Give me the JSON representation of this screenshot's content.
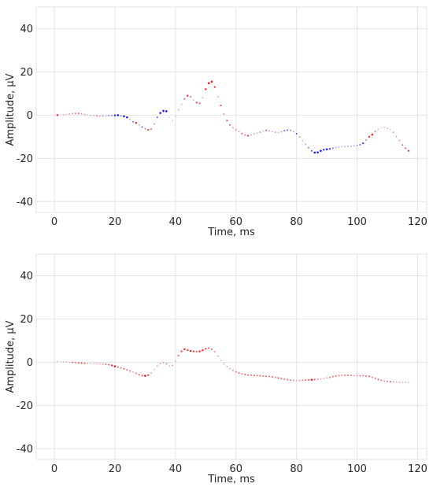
{
  "chart_data": [
    {
      "type": "scatter",
      "title": "",
      "xlabel": "Time, ms",
      "ylabel": "Amplitude, μV",
      "xlim": [
        -6,
        123
      ],
      "ylim": [
        -45,
        50
      ],
      "xticks": [
        0,
        20,
        40,
        60,
        80,
        100,
        120
      ],
      "yticks": [
        -40,
        -20,
        0,
        20,
        40
      ],
      "grid": true,
      "color_scale": {
        "negative": "#0000ff",
        "neutral": "#e6e6ea",
        "positive": "#ff0000"
      },
      "points": [
        [
          1,
          0,
          0.9,
          1.2
        ],
        [
          2,
          0.1,
          0.15,
          0.9
        ],
        [
          3,
          0.2,
          0.2,
          0.9
        ],
        [
          4,
          0.3,
          0.2,
          0.9
        ],
        [
          5,
          0.5,
          0.3,
          1.0
        ],
        [
          6,
          0.7,
          0.3,
          1.0
        ],
        [
          7,
          0.8,
          0.5,
          1.0
        ],
        [
          8,
          0.8,
          0.6,
          1.0
        ],
        [
          9,
          0.6,
          -0.3,
          0.9
        ],
        [
          10,
          0.3,
          -0.3,
          0.9
        ],
        [
          11,
          0.1,
          0.2,
          0.9
        ],
        [
          12,
          -0.1,
          0.3,
          0.9
        ],
        [
          13,
          -0.2,
          -0.3,
          0.9
        ],
        [
          14,
          -0.3,
          0.5,
          0.9
        ],
        [
          15,
          -0.4,
          0.4,
          0.9
        ],
        [
          16,
          -0.4,
          -0.4,
          0.9
        ],
        [
          17,
          -0.3,
          0.3,
          0.9
        ],
        [
          18,
          -0.2,
          -0.5,
          0.9
        ],
        [
          19,
          -0.2,
          -0.5,
          0.9
        ],
        [
          20,
          -0.1,
          -0.8,
          1.2
        ],
        [
          21,
          0,
          -0.9,
          1.3
        ],
        [
          22,
          -0.3,
          -0.5,
          0.9
        ],
        [
          23,
          -0.5,
          -0.9,
          1.3
        ],
        [
          24,
          -1,
          -0.9,
          1.3
        ],
        [
          25,
          -2,
          0.3,
          0.9
        ],
        [
          26,
          -3,
          -0.5,
          1.0
        ],
        [
          27,
          -3.6,
          0.9,
          1.2
        ],
        [
          28,
          -4.5,
          -0.3,
          0.9
        ],
        [
          29,
          -5.5,
          -0.6,
          1.0
        ],
        [
          30,
          -6.3,
          0.5,
          1.0
        ],
        [
          31,
          -6.8,
          0.8,
          1.1
        ],
        [
          32,
          -6.5,
          0.6,
          1.0
        ],
        [
          33,
          -4,
          -0.4,
          0.9
        ],
        [
          34,
          -1,
          -0.6,
          1.0
        ],
        [
          35,
          1,
          -0.9,
          1.3
        ],
        [
          36,
          2,
          -0.9,
          1.3
        ],
        [
          37,
          1.8,
          -0.9,
          1.3
        ],
        [
          38,
          -1,
          0.1,
          0.9
        ],
        [
          39,
          -2.5,
          0.2,
          0.9
        ],
        [
          40,
          -0.5,
          0.2,
          0.9
        ],
        [
          41,
          2.5,
          -0.3,
          0.9
        ],
        [
          42,
          5,
          0.3,
          0.9
        ],
        [
          43,
          7.5,
          0.6,
          1.0
        ],
        [
          44,
          9,
          0.9,
          1.2
        ],
        [
          45,
          8.5,
          0.5,
          1.0
        ],
        [
          46,
          7,
          0.3,
          0.9
        ],
        [
          47,
          5.8,
          0.8,
          1.1
        ],
        [
          48,
          5.5,
          0.7,
          1.0
        ],
        [
          49,
          8,
          0.4,
          0.9
        ],
        [
          50,
          12,
          0.9,
          1.2
        ],
        [
          51,
          14.8,
          0.9,
          1.3
        ],
        [
          52,
          15.5,
          0.9,
          1.3
        ],
        [
          53,
          13,
          0.8,
          1.1
        ],
        [
          54,
          8.5,
          0.4,
          0.9
        ],
        [
          55,
          4.5,
          0.8,
          1.0
        ],
        [
          56,
          0.5,
          0.5,
          0.9
        ],
        [
          57,
          -2.5,
          0.8,
          1.0
        ],
        [
          58,
          -4.5,
          0.6,
          1.0
        ],
        [
          59,
          -5.8,
          0.4,
          0.9
        ],
        [
          60,
          -6.8,
          0.5,
          0.9
        ],
        [
          61,
          -7.5,
          0.4,
          0.9
        ],
        [
          62,
          -8.5,
          0.6,
          1.0
        ],
        [
          63,
          -9.2,
          0.5,
          1.0
        ],
        [
          64,
          -9.5,
          0.8,
          1.1
        ],
        [
          65,
          -9.1,
          -0.3,
          0.9
        ],
        [
          66,
          -8.6,
          -0.3,
          0.9
        ],
        [
          67,
          -8.3,
          -0.2,
          0.9
        ],
        [
          68,
          -7.9,
          -0.4,
          0.9
        ],
        [
          69,
          -7.4,
          0.2,
          0.9
        ],
        [
          70,
          -7,
          -0.6,
          1.0
        ],
        [
          71,
          -7.3,
          0.4,
          0.9
        ],
        [
          72,
          -7.6,
          0.3,
          0.9
        ],
        [
          73,
          -7.9,
          -0.3,
          0.9
        ],
        [
          74,
          -8,
          0.3,
          0.9
        ],
        [
          75,
          -7.7,
          0.4,
          0.9
        ],
        [
          76,
          -7.2,
          -0.6,
          1.0
        ],
        [
          77,
          -6.9,
          -0.6,
          1.0
        ],
        [
          78,
          -7,
          -0.5,
          0.9
        ],
        [
          79,
          -7.5,
          0.4,
          0.9
        ],
        [
          80,
          -8.6,
          -0.7,
          1.0
        ],
        [
          81,
          -10,
          0.5,
          0.9
        ],
        [
          82,
          -11.8,
          0.3,
          0.9
        ],
        [
          83,
          -13.5,
          -0.3,
          0.9
        ],
        [
          84,
          -15,
          0.6,
          1.0
        ],
        [
          85,
          -16.5,
          -0.7,
          1.0
        ],
        [
          86,
          -17.3,
          -0.9,
          1.3
        ],
        [
          87,
          -17.2,
          -0.9,
          1.3
        ],
        [
          88,
          -16.5,
          -0.9,
          1.3
        ],
        [
          89,
          -16,
          -0.8,
          1.2
        ],
        [
          90,
          -15.8,
          -0.9,
          1.3
        ],
        [
          91,
          -15.6,
          -0.8,
          1.1
        ],
        [
          92,
          -15.3,
          -0.5,
          1.0
        ],
        [
          93,
          -15,
          -0.3,
          0.9
        ],
        [
          94,
          -14.8,
          -0.3,
          0.9
        ],
        [
          95,
          -14.6,
          -0.2,
          0.9
        ],
        [
          96,
          -14.5,
          0.3,
          0.9
        ],
        [
          97,
          -14.4,
          -0.2,
          0.9
        ],
        [
          98,
          -14.4,
          -0.3,
          0.9
        ],
        [
          99,
          -14.2,
          -0.3,
          0.9
        ],
        [
          100,
          -14,
          -0.4,
          0.9
        ],
        [
          101,
          -13.7,
          -0.6,
          1.0
        ],
        [
          102,
          -13,
          -0.8,
          1.1
        ],
        [
          103,
          -11.5,
          0.5,
          1.0
        ],
        [
          104,
          -10,
          0.8,
          1.2
        ],
        [
          105,
          -9,
          0.9,
          1.3
        ],
        [
          106,
          -7.5,
          0.5,
          1.0
        ],
        [
          107,
          -6.5,
          0.2,
          0.9
        ],
        [
          108,
          -5.8,
          0.1,
          0.9
        ],
        [
          109,
          -5.6,
          0.2,
          0.9
        ],
        [
          110,
          -6.1,
          0.3,
          0.9
        ],
        [
          111,
          -6.8,
          0.2,
          0.9
        ],
        [
          112,
          -7.9,
          0.4,
          0.9
        ],
        [
          113,
          -9.8,
          0.4,
          0.9
        ],
        [
          114,
          -11.8,
          0.5,
          0.9
        ],
        [
          115,
          -13.8,
          0.6,
          1.0
        ],
        [
          116,
          -15.3,
          0.7,
          1.0
        ],
        [
          117,
          -16.5,
          0.9,
          1.1
        ]
      ]
    },
    {
      "type": "scatter",
      "title": "",
      "xlabel": "Time, ms",
      "ylabel": "Amplitude, μV",
      "xlim": [
        -6,
        123
      ],
      "ylim": [
        -45,
        50
      ],
      "xticks": [
        0,
        20,
        40,
        60,
        80,
        100,
        120
      ],
      "yticks": [
        -40,
        -20,
        0,
        20,
        40
      ],
      "grid": true,
      "color_scale": {
        "negative": "#0000ff",
        "neutral": "#e6e6ea",
        "positive": "#ff0000"
      },
      "points": [
        [
          1,
          0.3,
          -0.2,
          0.9
        ],
        [
          2,
          0.3,
          0.1,
          0.9
        ],
        [
          3,
          0.2,
          0.2,
          0.9
        ],
        [
          4,
          0.1,
          0.2,
          0.9
        ],
        [
          5,
          0,
          0.3,
          0.9
        ],
        [
          6,
          -0.1,
          0.6,
          1.0
        ],
        [
          7,
          -0.2,
          0.6,
          1.0
        ],
        [
          8,
          -0.3,
          0.7,
          1.0
        ],
        [
          9,
          -0.4,
          0.8,
          1.0
        ],
        [
          10,
          -0.5,
          0.6,
          1.0
        ],
        [
          11,
          -0.5,
          0.3,
          0.9
        ],
        [
          12,
          -0.6,
          -0.2,
          0.9
        ],
        [
          13,
          -0.6,
          0.2,
          0.9
        ],
        [
          14,
          -0.7,
          0.3,
          0.9
        ],
        [
          15,
          -0.8,
          0.3,
          0.9
        ],
        [
          16,
          -0.9,
          0.4,
          0.9
        ],
        [
          17,
          -1,
          0.5,
          1.0
        ],
        [
          18,
          -1.2,
          0.7,
          1.0
        ],
        [
          19,
          -1.5,
          0.8,
          1.2
        ],
        [
          20,
          -1.9,
          0.9,
          1.3
        ],
        [
          21,
          -2.3,
          0.6,
          1.0
        ],
        [
          22,
          -2.7,
          0.5,
          1.0
        ],
        [
          23,
          -3.1,
          0.6,
          1.0
        ],
        [
          24,
          -3.6,
          0.6,
          1.0
        ],
        [
          25,
          -4.1,
          0.5,
          1.0
        ],
        [
          26,
          -4.6,
          0.4,
          0.9
        ],
        [
          27,
          -5.2,
          0.5,
          1.0
        ],
        [
          28,
          -5.8,
          0.6,
          1.0
        ],
        [
          29,
          -6.2,
          0.7,
          1.0
        ],
        [
          30,
          -6.3,
          0.9,
          1.3
        ],
        [
          31,
          -6,
          0.8,
          1.1
        ],
        [
          32,
          -5,
          0.4,
          0.9
        ],
        [
          33,
          -3.5,
          0.3,
          0.9
        ],
        [
          34,
          -1.8,
          0.4,
          0.9
        ],
        [
          35,
          -0.6,
          0.5,
          0.9
        ],
        [
          36,
          -0.2,
          0.3,
          0.9
        ],
        [
          37,
          -0.8,
          -0.4,
          0.9
        ],
        [
          38,
          -1.8,
          0.3,
          0.9
        ],
        [
          39,
          -1.5,
          0.4,
          0.9
        ],
        [
          40,
          0.5,
          0.3,
          0.9
        ],
        [
          41,
          3,
          0.6,
          1.0
        ],
        [
          42,
          5,
          0.8,
          1.1
        ],
        [
          43,
          6,
          0.9,
          1.2
        ],
        [
          44,
          5.6,
          0.8,
          1.1
        ],
        [
          45,
          5.2,
          0.9,
          1.2
        ],
        [
          46,
          5,
          0.8,
          1.1
        ],
        [
          47,
          4.9,
          0.7,
          1.0
        ],
        [
          48,
          5,
          0.9,
          1.2
        ],
        [
          49,
          5.5,
          0.9,
          1.2
        ],
        [
          50,
          6.2,
          0.8,
          1.1
        ],
        [
          51,
          6.5,
          0.7,
          1.0
        ],
        [
          52,
          6,
          0.6,
          1.0
        ],
        [
          53,
          4.8,
          0.5,
          0.9
        ],
        [
          54,
          2.8,
          0.4,
          0.9
        ],
        [
          55,
          0.8,
          0.2,
          0.9
        ],
        [
          56,
          -0.8,
          0.3,
          0.9
        ],
        [
          57,
          -2,
          -0.3,
          0.9
        ],
        [
          58,
          -3,
          0.4,
          0.9
        ],
        [
          59,
          -3.8,
          0.5,
          0.9
        ],
        [
          60,
          -4.5,
          0.5,
          1.0
        ],
        [
          61,
          -5,
          0.6,
          1.0
        ],
        [
          62,
          -5.4,
          0.5,
          1.0
        ],
        [
          63,
          -5.7,
          0.6,
          1.0
        ],
        [
          64,
          -5.9,
          0.6,
          1.0
        ],
        [
          65,
          -6,
          0.5,
          1.0
        ],
        [
          66,
          -6.1,
          0.6,
          1.0
        ],
        [
          67,
          -6.2,
          0.6,
          1.0
        ],
        [
          68,
          -6.3,
          0.6,
          1.0
        ],
        [
          69,
          -6.4,
          0.5,
          1.0
        ],
        [
          70,
          -6.5,
          0.6,
          1.0
        ],
        [
          71,
          -6.6,
          0.5,
          1.0
        ],
        [
          72,
          -6.8,
          0.6,
          1.0
        ],
        [
          73,
          -7,
          0.5,
          1.0
        ],
        [
          74,
          -7.3,
          0.7,
          1.1
        ],
        [
          75,
          -7.6,
          0.6,
          1.0
        ],
        [
          76,
          -7.9,
          0.5,
          1.0
        ],
        [
          77,
          -8.1,
          0.5,
          1.0
        ],
        [
          78,
          -8.3,
          0.5,
          1.0
        ],
        [
          79,
          -8.4,
          0.4,
          0.9
        ],
        [
          80,
          -8.5,
          0.3,
          0.9
        ],
        [
          81,
          -8.5,
          0.4,
          0.9
        ],
        [
          82,
          -8.4,
          0.5,
          1.0
        ],
        [
          83,
          -8.3,
          0.6,
          1.0
        ],
        [
          84,
          -8.2,
          0.7,
          1.0
        ],
        [
          85,
          -8.1,
          0.9,
          1.3
        ],
        [
          86,
          -8,
          0.6,
          1.0
        ],
        [
          87,
          -7.9,
          0.4,
          0.9
        ],
        [
          88,
          -7.8,
          0.3,
          0.9
        ],
        [
          89,
          -7.6,
          0.3,
          0.9
        ],
        [
          90,
          -7.3,
          0.4,
          0.9
        ],
        [
          91,
          -7,
          0.5,
          1.0
        ],
        [
          92,
          -6.7,
          0.6,
          1.0
        ],
        [
          93,
          -6.4,
          0.6,
          1.0
        ],
        [
          94,
          -6.2,
          0.5,
          1.0
        ],
        [
          95,
          -6.1,
          0.4,
          0.9
        ],
        [
          96,
          -6,
          0.5,
          1.0
        ],
        [
          97,
          -6,
          0.6,
          1.0
        ],
        [
          98,
          -6.1,
          0.5,
          1.0
        ],
        [
          99,
          -6.2,
          0.4,
          0.9
        ],
        [
          100,
          -6.3,
          0.4,
          0.9
        ],
        [
          101,
          -6.3,
          0.5,
          1.0
        ],
        [
          102,
          -6.3,
          0.5,
          1.0
        ],
        [
          103,
          -6.4,
          0.6,
          1.0
        ],
        [
          104,
          -6.6,
          0.7,
          1.0
        ],
        [
          105,
          -7,
          0.5,
          1.0
        ],
        [
          106,
          -7.5,
          0.6,
          1.0
        ],
        [
          107,
          -8,
          0.6,
          1.0
        ],
        [
          108,
          -8.4,
          0.5,
          1.0
        ],
        [
          109,
          -8.7,
          0.4,
          0.9
        ],
        [
          110,
          -8.9,
          0.5,
          1.0
        ],
        [
          111,
          -9,
          -0.5,
          1.0
        ],
        [
          112,
          -9.1,
          0.4,
          0.9
        ],
        [
          113,
          -9.2,
          0.3,
          0.9
        ],
        [
          114,
          -9.3,
          0.3,
          0.9
        ],
        [
          115,
          -9.3,
          0.2,
          0.9
        ],
        [
          116,
          -9.3,
          0.3,
          0.9
        ],
        [
          117,
          -9.3,
          0.2,
          0.9
        ]
      ]
    }
  ]
}
